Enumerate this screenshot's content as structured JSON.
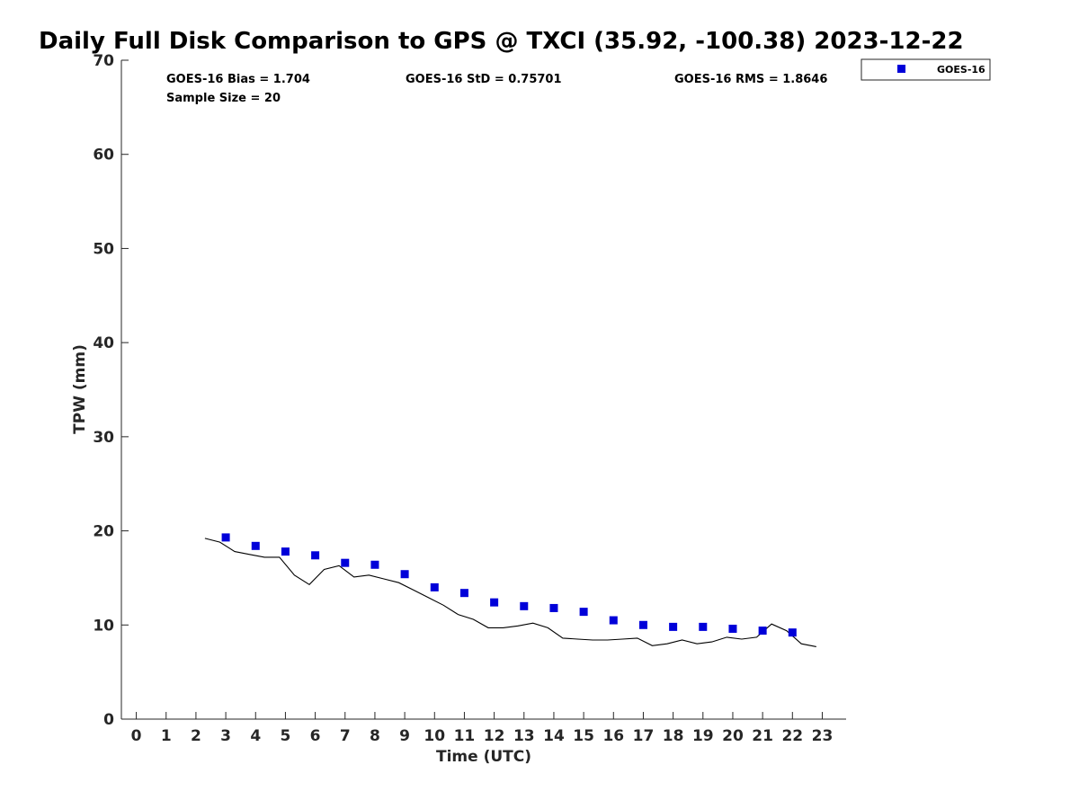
{
  "chart_data": {
    "type": "scatter",
    "title": "Daily Full Disk Comparison to GPS @ TXCI (35.92, -100.38) 2023-12-22",
    "xlabel": "Time (UTC)",
    "ylabel": "TPW (mm)",
    "xlim": [
      -0.5,
      23.8
    ],
    "ylim": [
      0,
      70
    ],
    "xticks": [
      "0",
      "1",
      "2",
      "3",
      "4",
      "5",
      "6",
      "7",
      "8",
      "9",
      "10",
      "11",
      "12",
      "13",
      "14",
      "15",
      "16",
      "17",
      "18",
      "19",
      "20",
      "21",
      "22",
      "23"
    ],
    "yticks": [
      "0",
      "10",
      "20",
      "30",
      "40",
      "50",
      "60",
      "70"
    ],
    "grid": false,
    "legend_position": "top-right",
    "colors": {
      "goes": "#0000d9",
      "gps": "#000000",
      "axis": "#262626"
    },
    "stats": {
      "bias": "GOES-16 Bias = 1.704",
      "std": "GOES-16 StD = 0.75701",
      "rms": "GOES-16 RMS = 1.8646",
      "sample": "Sample Size = 20"
    },
    "series": [
      {
        "name": "GOES-16",
        "kind": "scatter",
        "x": [
          3,
          4,
          5,
          6,
          7,
          8,
          9,
          10,
          11,
          12,
          13,
          14,
          15,
          16,
          17,
          18,
          19,
          20,
          21,
          22
        ],
        "y": [
          19.3,
          18.4,
          17.8,
          17.4,
          16.6,
          16.4,
          15.4,
          14.0,
          13.4,
          12.4,
          12.0,
          11.8,
          11.4,
          10.5,
          10.0,
          9.8,
          9.8,
          9.6,
          9.4,
          9.2
        ]
      },
      {
        "kind": "line",
        "x": [
          2.3,
          2.8,
          3.3,
          3.8,
          4.3,
          4.8,
          5.3,
          5.8,
          6.3,
          6.8,
          7.3,
          7.8,
          8.3,
          8.8,
          9.3,
          9.8,
          10.3,
          10.8,
          11.3,
          11.8,
          12.3,
          12.8,
          13.3,
          13.8,
          14.3,
          14.8,
          15.3,
          15.8,
          16.3,
          16.8,
          17.3,
          17.8,
          18.3,
          18.8,
          19.3,
          19.8,
          20.3,
          20.8,
          21.3,
          21.8,
          22.3,
          22.8
        ],
        "y": [
          19.2,
          18.8,
          17.8,
          17.5,
          17.2,
          17.2,
          15.3,
          14.3,
          15.9,
          16.3,
          15.1,
          15.3,
          14.9,
          14.5,
          13.7,
          12.9,
          12.1,
          11.1,
          10.6,
          9.7,
          9.7,
          9.9,
          10.2,
          9.7,
          8.6,
          8.5,
          8.4,
          8.4,
          8.5,
          8.6,
          7.8,
          8.0,
          8.4,
          8.0,
          8.2,
          8.7,
          8.5,
          8.7,
          10.1,
          9.4,
          8.0,
          7.7
        ]
      }
    ]
  }
}
